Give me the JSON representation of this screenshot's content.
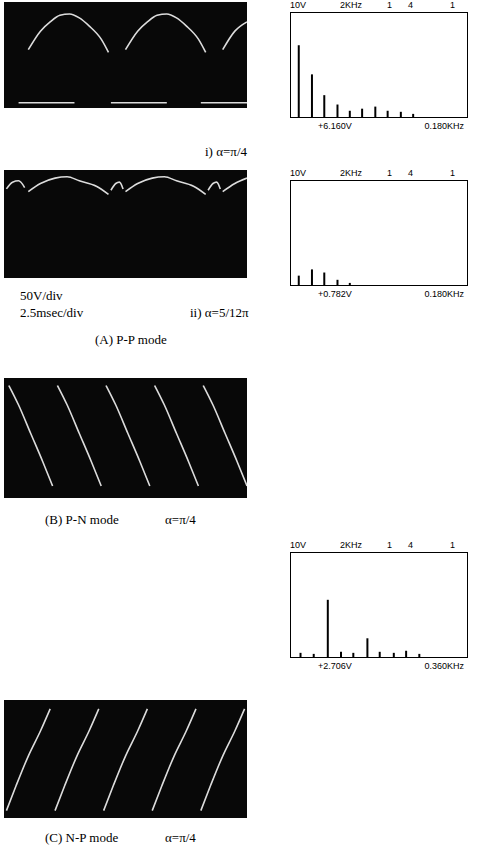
{
  "group_title": "(A) P-P mode",
  "chart_data": [
    {
      "type": "line",
      "title": "i) α=π/4",
      "xlim": [
        0,
        10
      ],
      "ylim": [
        0,
        8
      ],
      "tick_labels": false,
      "series": [
        {
          "color": "#dcdcdc",
          "x": [
            1.0,
            1.5,
            1.9,
            2.3,
            2.7,
            3.1,
            3.5,
            4.0,
            4.3,
            4.6,
            5.0,
            5.5,
            5.9,
            6.3,
            6.7,
            7.1,
            7.5,
            8.0,
            8.3,
            8.6,
            9.0,
            9.5,
            10.0
          ],
          "values": [
            4.4,
            5.8,
            6.5,
            7.0,
            7.1,
            6.8,
            6.2,
            5.2,
            4.2,
            null,
            4.4,
            5.8,
            6.5,
            7.0,
            7.1,
            6.8,
            6.2,
            5.2,
            4.2,
            null,
            4.4,
            5.8,
            6.5
          ]
        },
        {
          "color": "#dcdcdc",
          "x": [
            0.6,
            2.9,
            3.5,
            4.4,
            6.7,
            7.2,
            8.1,
            10.0
          ],
          "values": [
            0.4,
            0.4,
            null,
            0.4,
            0.4,
            null,
            0.4,
            0.4
          ]
        }
      ]
    },
    {
      "type": "bar",
      "header": [
        "10V",
        "2KHz",
        "1",
        "4",
        "1"
      ],
      "footer": [
        "+6.160V",
        "0.180KHz"
      ],
      "xlim": [
        0,
        2
      ],
      "ylim": [
        0,
        10
      ],
      "tick_labels": false,
      "color": "#000000",
      "x": [
        0.09,
        0.24,
        0.38,
        0.53,
        0.67,
        0.81,
        0.96,
        1.1,
        1.25,
        1.39
      ],
      "values": [
        6.9,
        4.1,
        2.1,
        1.2,
        0.6,
        0.8,
        1.0,
        0.6,
        0.5,
        0.3
      ]
    },
    {
      "type": "line",
      "title": "ii) α=5/12π",
      "annotations": [
        "50V/div",
        "2.5msec/div"
      ],
      "xlim": [
        0,
        10
      ],
      "ylim": [
        0,
        8
      ],
      "tick_labels": false,
      "series": [
        {
          "color": "#dcdcdc",
          "x": [
            0.1,
            0.35,
            0.6,
            0.85,
            0.9,
            1.0,
            1.5,
            2.1,
            2.6,
            3.1,
            3.8,
            4.3,
            4.35,
            4.4,
            4.6,
            4.75,
            4.9,
            4.95,
            5.0,
            5.5,
            6.1,
            6.6,
            7.1,
            7.8,
            8.3,
            8.35,
            8.4,
            8.6,
            8.75,
            8.9,
            8.95,
            9.0,
            9.5,
            10.0
          ],
          "values": [
            6.6,
            7.1,
            7.2,
            6.7,
            null,
            6.4,
            7.0,
            7.4,
            7.5,
            7.2,
            6.8,
            6.2,
            null,
            6.5,
            7.0,
            7.1,
            6.6,
            null,
            6.4,
            7.0,
            7.4,
            7.5,
            7.2,
            6.8,
            6.2,
            null,
            6.5,
            7.0,
            7.1,
            6.6,
            null,
            6.4,
            7.0,
            7.4
          ]
        }
      ]
    },
    {
      "type": "bar",
      "header": [
        "10V",
        "2KHz",
        "1",
        "4",
        "1"
      ],
      "footer": [
        "+0.782V",
        "0.180KHz"
      ],
      "xlim": [
        0,
        2
      ],
      "ylim": [
        0,
        10
      ],
      "tick_labels": false,
      "color": "#000000",
      "x": [
        0.09,
        0.24,
        0.38,
        0.53,
        0.67
      ],
      "values": [
        0.9,
        1.5,
        1.2,
        0.5,
        0.2
      ]
    },
    {
      "type": "line",
      "title": "(B) P-N mode",
      "subtitle": "α=π/4",
      "xlim": [
        0,
        10
      ],
      "ylim": [
        0,
        8
      ],
      "tick_labels": false,
      "series": [
        {
          "color": "#dcdcdc",
          "x": [
            0.2,
            0.6,
            1.1,
            1.6,
            2.0,
            2.1,
            2.2,
            2.6,
            3.1,
            3.6,
            4.0,
            4.1,
            4.2,
            4.6,
            5.1,
            5.6,
            6.0,
            6.1,
            6.2,
            6.6,
            7.1,
            7.6,
            8.0,
            8.1,
            8.2,
            8.6,
            9.1,
            9.6,
            10.0
          ],
          "values": [
            7.5,
            6.2,
            4.3,
            2.4,
            0.8,
            null,
            7.5,
            6.2,
            4.3,
            2.4,
            0.8,
            null,
            7.5,
            6.2,
            4.3,
            2.4,
            0.8,
            null,
            7.5,
            6.2,
            4.3,
            2.4,
            0.8,
            null,
            7.5,
            6.2,
            4.3,
            2.4,
            0.8
          ]
        }
      ]
    },
    {
      "type": "bar",
      "header": [
        "10V",
        "2KHz",
        "1",
        "4",
        "1"
      ],
      "footer": [
        "+2.706V",
        "0.360KHz"
      ],
      "xlim": [
        0,
        2
      ],
      "ylim": [
        0,
        10
      ],
      "tick_labels": false,
      "color": "#000000",
      "x": [
        0.11,
        0.26,
        0.42,
        0.57,
        0.71,
        0.87,
        1.01,
        1.17,
        1.31,
        1.46
      ],
      "values": [
        0.4,
        0.3,
        5.5,
        0.5,
        0.4,
        1.8,
        0.5,
        0.4,
        0.6,
        0.3
      ]
    },
    {
      "type": "line",
      "title": "(C) N-P mode",
      "subtitle": "α=π/4",
      "xlim": [
        0,
        10
      ],
      "ylim": [
        0,
        8
      ],
      "tick_labels": false,
      "series": [
        {
          "color": "#dcdcdc",
          "x": [
            0.1,
            0.5,
            1.0,
            1.5,
            1.9,
            2.0,
            2.1,
            2.5,
            3.0,
            3.5,
            3.9,
            4.0,
            4.1,
            4.5,
            5.0,
            5.5,
            5.9,
            6.0,
            6.1,
            6.5,
            7.0,
            7.5,
            7.9,
            8.0,
            8.1,
            8.5,
            9.0,
            9.5,
            9.9
          ],
          "values": [
            0.5,
            2.2,
            4.2,
            5.9,
            7.4,
            null,
            0.5,
            2.2,
            4.2,
            5.9,
            7.4,
            null,
            0.5,
            2.2,
            4.2,
            5.9,
            7.4,
            null,
            0.5,
            2.2,
            4.2,
            5.9,
            7.4,
            null,
            0.5,
            2.2,
            4.2,
            5.9,
            7.4
          ]
        }
      ]
    }
  ]
}
